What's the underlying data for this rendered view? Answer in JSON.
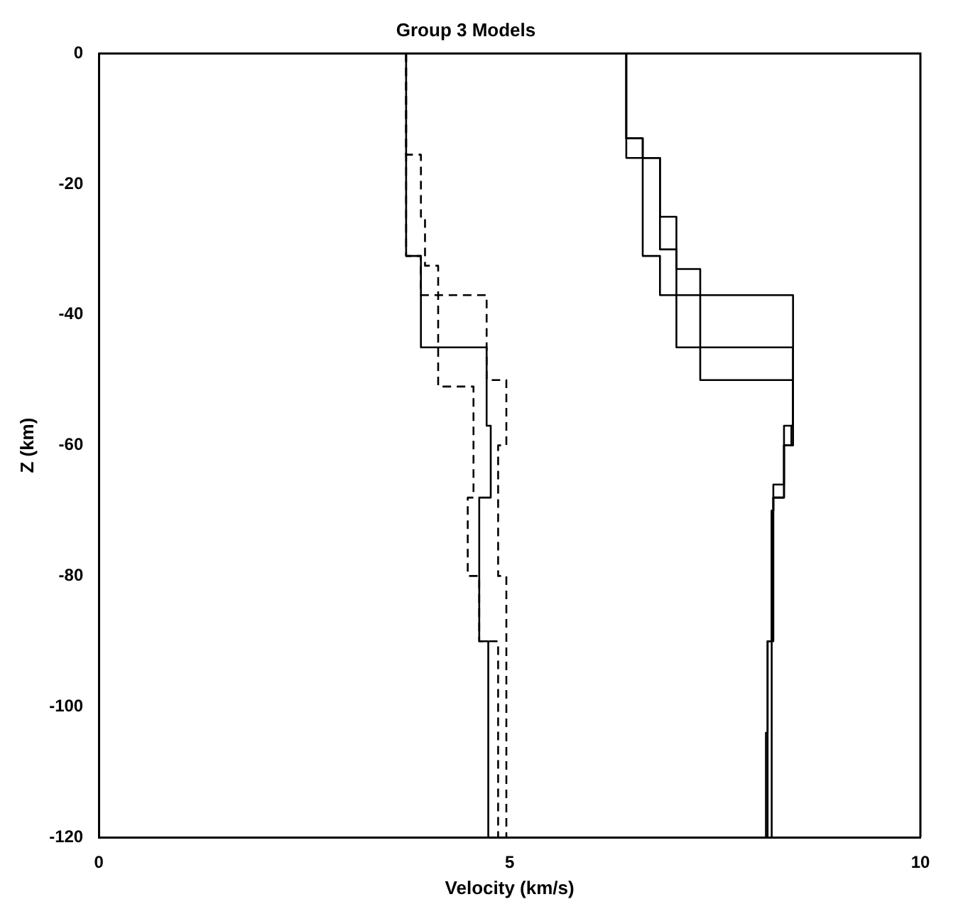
{
  "chart_data": {
    "type": "line",
    "title": "Group 3 Models",
    "xlabel": "Velocity (km/s)",
    "ylabel": "Z (km)",
    "xlim": [
      0,
      10
    ],
    "xticks": [
      0,
      5,
      10
    ],
    "ylim": [
      -120,
      0
    ],
    "yticks": [
      -120,
      -100,
      -80,
      -60,
      -40,
      -20,
      0
    ],
    "grid": false,
    "legend": false,
    "marker": "none",
    "series": [
      {
        "color": "#000000",
        "line_style": "solid",
        "x": [
          6.42,
          6.42,
          6.62,
          6.62,
          6.83,
          6.83,
          7.03,
          7.03,
          8.45,
          8.45,
          8.34,
          8.34,
          8.21,
          8.21,
          8.19,
          8.19,
          8.14,
          8.14,
          8.12,
          8.12
        ],
        "values": [
          0,
          -13,
          -13,
          -16,
          -16,
          -25,
          -25,
          -37,
          -37,
          -57,
          -57,
          -66,
          -66,
          -70,
          -70,
          -90,
          -90,
          -104,
          -104,
          -120
        ]
      },
      {
        "color": "#000000",
        "line_style": "solid",
        "x": [
          6.42,
          6.42,
          6.83,
          6.83,
          7.03,
          7.03,
          7.32,
          7.32,
          8.45,
          8.45,
          8.34,
          8.34,
          8.21,
          8.21,
          8.14,
          8.14
        ],
        "values": [
          0,
          -16,
          -16,
          -30,
          -30,
          -33,
          -33,
          -50,
          -50,
          -60,
          -60,
          -68,
          -68,
          -90,
          -90,
          -120
        ]
      },
      {
        "color": "#000000",
        "line_style": "solid",
        "x": [
          6.42,
          6.42,
          6.62,
          6.62,
          6.83,
          6.83,
          7.03,
          7.03,
          8.45,
          8.45,
          8.43,
          8.43,
          8.34,
          8.34,
          8.21,
          8.21,
          8.19,
          8.19
        ],
        "values": [
          0,
          -13,
          -13,
          -31,
          -31,
          -37,
          -37,
          -45,
          -45,
          -57,
          -57,
          -60,
          -60,
          -68,
          -68,
          -70,
          -70,
          -120
        ]
      },
      {
        "color": "#000000",
        "line_style": "solid",
        "x": [
          3.74,
          3.74,
          3.92,
          3.92,
          4.72,
          4.72,
          4.77,
          4.77,
          4.63,
          4.63,
          4.74,
          4.74
        ],
        "values": [
          0,
          -31,
          -31,
          -45,
          -45,
          -57,
          -57,
          -68,
          -68,
          -90,
          -90,
          -120
        ]
      },
      {
        "color": "#000000",
        "line_style": "dashed",
        "x": [
          3.74,
          3.74,
          3.92,
          3.92,
          3.97,
          3.97,
          4.13,
          4.13,
          4.72,
          4.72,
          4.96,
          4.96,
          4.86,
          4.86,
          4.96,
          4.96
        ],
        "values": [
          0,
          -15.5,
          -15.5,
          -25,
          -25,
          -32.5,
          -32.5,
          -37,
          -37,
          -50,
          -50,
          -60,
          -60,
          -80,
          -80,
          -120
        ]
      },
      {
        "color": "#000000",
        "line_style": "dashed",
        "x": [
          3.74,
          3.74,
          3.92,
          3.92,
          4.13,
          4.13,
          4.56,
          4.56,
          4.49,
          4.49,
          4.63,
          4.63,
          4.86,
          4.86
        ],
        "values": [
          0,
          -31,
          -31,
          -37,
          -37,
          -51,
          -51,
          -68,
          -68,
          -80,
          -80,
          -90,
          -90,
          -120
        ]
      }
    ]
  }
}
